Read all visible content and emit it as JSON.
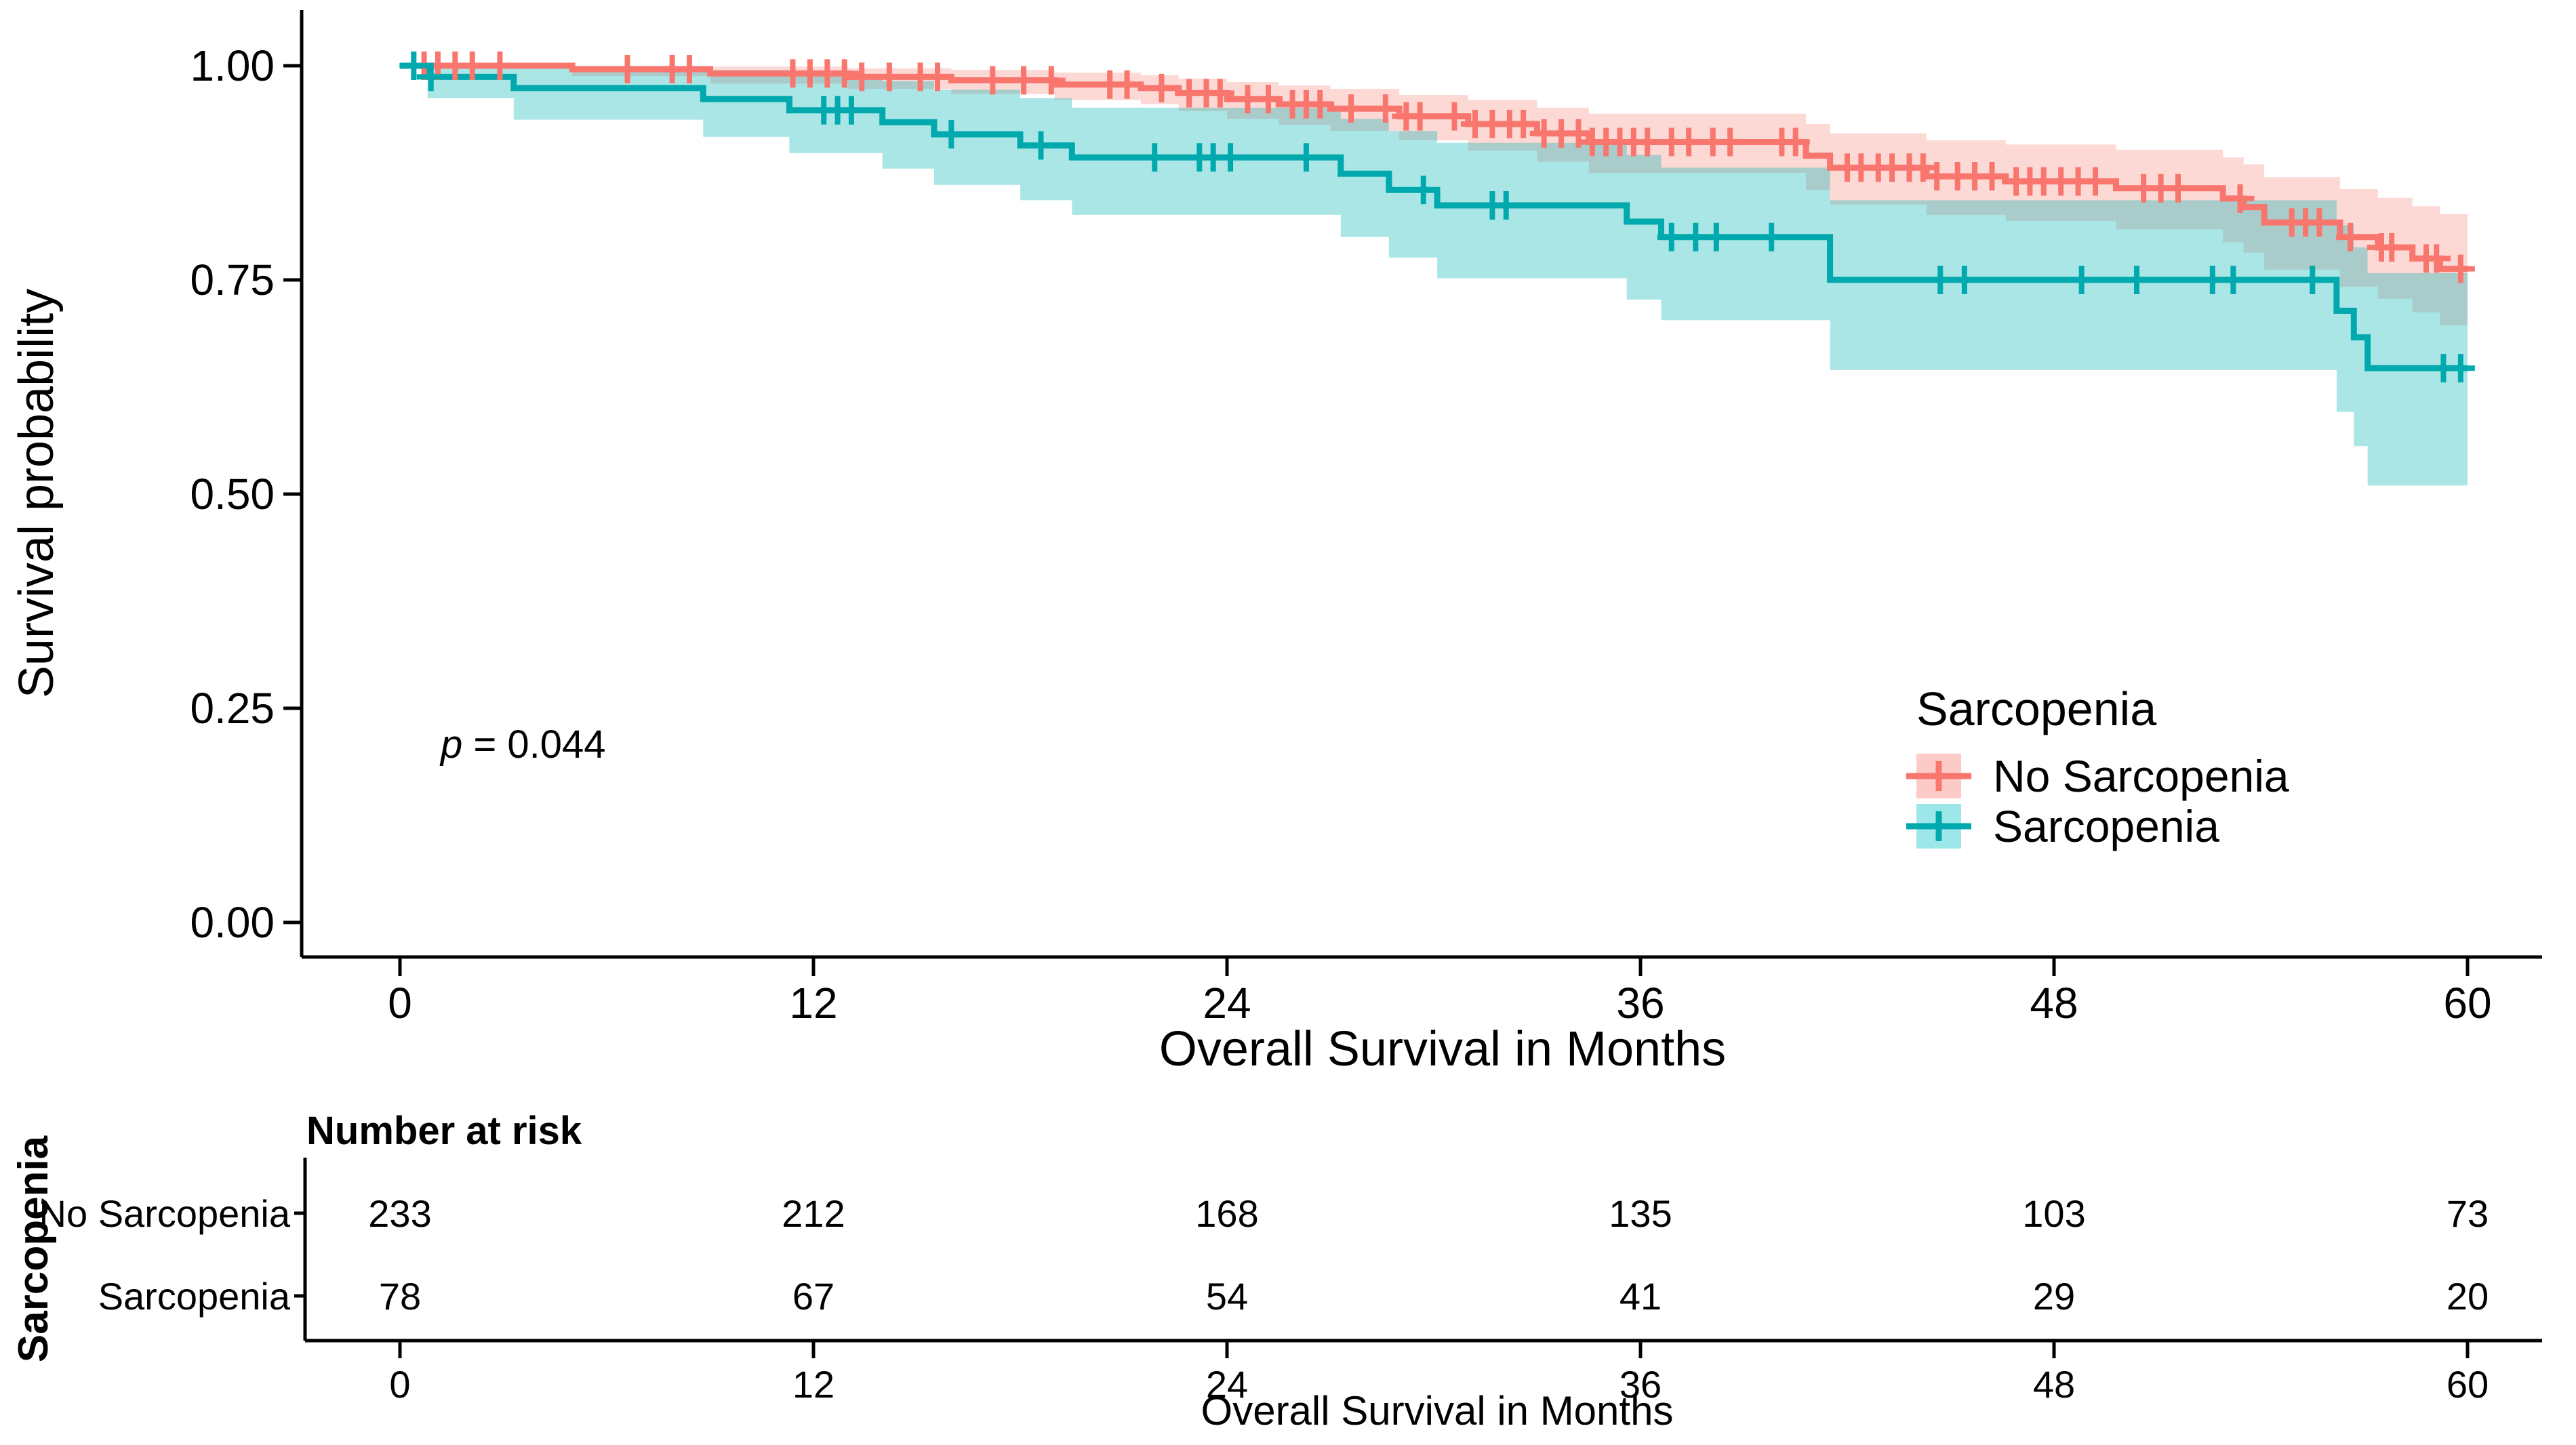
{
  "chart_data": {
    "type": "line",
    "subtype": "kaplan_meier_step_with_ci",
    "title": "",
    "xlabel": "Overall Survival in Months",
    "ylabel": "Survival probability",
    "xlim": [
      0,
      60
    ],
    "ylim": [
      0.0,
      1.0
    ],
    "x_tick_values": [
      0,
      12,
      24,
      36,
      48,
      60
    ],
    "x_tick_labels": [
      "0",
      "12",
      "24",
      "36",
      "48",
      "60"
    ],
    "y_tick_values": [
      0.0,
      0.25,
      0.5,
      0.75,
      1.0
    ],
    "y_tick_labels": [
      "0.00",
      "0.25",
      "0.50",
      "0.75",
      "1.00"
    ],
    "grid": false,
    "p_value": 0.044,
    "p_value_prefix": "p",
    "p_value_suffix": " = 0.044",
    "legend": {
      "title": "Sarcopenia",
      "position": "right-middle"
    },
    "series": [
      {
        "name": "No Sarcopenia",
        "color": "#F8766D",
        "band_fill": "rgba(248,118,109,0.28)",
        "legend_fill": "rgba(248,118,109,0.38)",
        "x": [
          0,
          5,
          9,
          13,
          16,
          19,
          21.5,
          22.6,
          24,
          25.5,
          27,
          29,
          31,
          33,
          34.5,
          40.8,
          41.5,
          44.3,
          46.6,
          49.8,
          52.9,
          53.5,
          54.1,
          56.3,
          57.4,
          58.4,
          59.2,
          60
        ],
        "y": [
          1,
          0.996,
          0.991,
          0.987,
          0.983,
          0.978,
          0.974,
          0.968,
          0.961,
          0.955,
          0.95,
          0.941,
          0.932,
          0.921,
          0.911,
          0.895,
          0.881,
          0.871,
          0.865,
          0.857,
          0.845,
          0.835,
          0.817,
          0.8,
          0.788,
          0.775,
          0.763,
          0.763
        ],
        "ci_upper": [
          1,
          1,
          0.999,
          0.997,
          0.995,
          0.992,
          0.989,
          0.985,
          0.981,
          0.977,
          0.973,
          0.966,
          0.96,
          0.951,
          0.944,
          0.932,
          0.921,
          0.913,
          0.908,
          0.902,
          0.893,
          0.885,
          0.87,
          0.856,
          0.846,
          0.836,
          0.827,
          0.827
        ],
        "ci_lower": [
          1,
          0.988,
          0.979,
          0.973,
          0.967,
          0.96,
          0.955,
          0.947,
          0.938,
          0.931,
          0.924,
          0.913,
          0.901,
          0.888,
          0.875,
          0.855,
          0.838,
          0.826,
          0.819,
          0.809,
          0.794,
          0.782,
          0.762,
          0.742,
          0.728,
          0.712,
          0.697,
          0.697
        ],
        "censor_x": [
          0.7,
          1.1,
          1.6,
          2.1,
          2.9,
          6.6,
          7.9,
          8.4,
          11.4,
          11.9,
          12.4,
          12.9,
          13.4,
          14.2,
          15.1,
          15.6,
          17.2,
          18.1,
          18.9,
          20.6,
          21.1,
          22.1,
          22.9,
          23.4,
          23.8,
          24.6,
          25.2,
          25.9,
          26.3,
          26.7,
          27.6,
          28.6,
          29.2,
          29.6,
          30.6,
          31.2,
          31.7,
          32.2,
          32.6,
          33.2,
          33.7,
          34.2,
          34.6,
          35.0,
          35.4,
          35.8,
          36.2,
          36.9,
          37.4,
          38.1,
          38.6,
          40.1,
          40.5,
          42.0,
          42.4,
          42.9,
          43.3,
          43.8,
          44.2,
          44.6,
          45.2,
          45.7,
          46.2,
          46.9,
          47.3,
          47.7,
          48.2,
          48.7,
          49.2,
          50.6,
          51.1,
          51.6,
          53.4,
          54.9,
          55.3,
          55.7,
          56.6,
          57.5,
          57.8,
          58.8,
          59.1,
          59.8
        ]
      },
      {
        "name": "Sarcopenia",
        "color": "#00A9AD",
        "band_fill": "rgba(0,178,183,0.33)",
        "legend_fill": "rgba(0,191,196,0.38)",
        "x": [
          0,
          0.8,
          3.3,
          8.8,
          11.3,
          14,
          15.5,
          18,
          19.5,
          27.3,
          28.7,
          30.1,
          35.6,
          36.6,
          41.5,
          56.2,
          56.7,
          57.1,
          60
        ],
        "y": [
          1,
          0.987,
          0.974,
          0.961,
          0.948,
          0.934,
          0.92,
          0.907,
          0.893,
          0.874,
          0.855,
          0.837,
          0.818,
          0.8,
          0.75,
          0.714,
          0.683,
          0.647,
          0.647
        ],
        "ci_upper": [
          1,
          1,
          0.999,
          0.995,
          0.989,
          0.982,
          0.972,
          0.962,
          0.951,
          0.938,
          0.924,
          0.91,
          0.896,
          0.881,
          0.843,
          0.814,
          0.788,
          0.758,
          0.758
        ],
        "ci_lower": [
          1,
          0.962,
          0.937,
          0.917,
          0.898,
          0.88,
          0.861,
          0.843,
          0.826,
          0.8,
          0.776,
          0.752,
          0.727,
          0.703,
          0.645,
          0.596,
          0.556,
          0.51,
          0.51
        ],
        "censor_x": [
          0.4,
          0.9,
          12.3,
          12.7,
          13.1,
          16.0,
          18.6,
          21.9,
          23.2,
          23.6,
          24.1,
          26.3,
          29.7,
          31.7,
          32.1,
          36.9,
          37.6,
          38.2,
          39.8,
          44.7,
          45.4,
          48.8,
          50.4,
          52.6,
          53.2,
          55.5,
          59.3,
          59.8
        ]
      }
    ],
    "risk_table": {
      "title": "Number at risk",
      "axis_label": "Sarcopenia",
      "xlabel": "Overall Survival in Months",
      "times": [
        0,
        12,
        24,
        36,
        48,
        60
      ],
      "rows": [
        {
          "name": "No Sarcopenia",
          "color": "#F8766D",
          "counts": [
            233,
            212,
            168,
            135,
            103,
            73
          ]
        },
        {
          "name": "Sarcopenia",
          "color": "#00BFC4",
          "counts": [
            78,
            67,
            54,
            41,
            29,
            20
          ]
        }
      ]
    }
  }
}
